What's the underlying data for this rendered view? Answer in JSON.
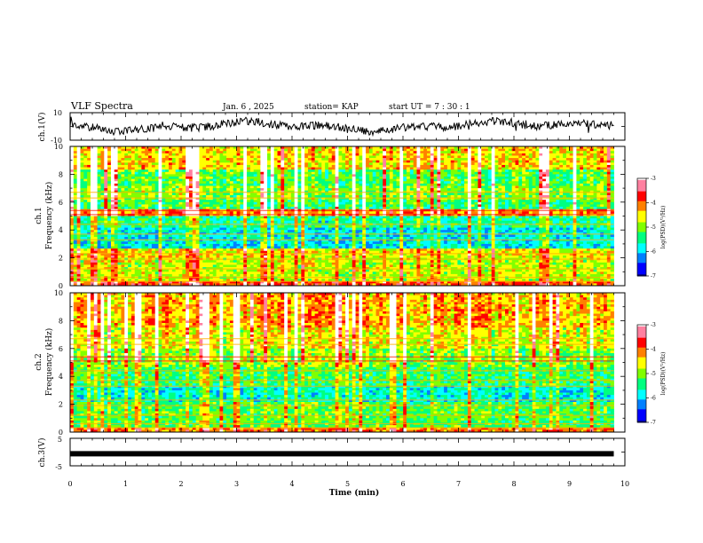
{
  "header": {
    "title": "VLF Spectra",
    "date": "Jan. 6 , 2025",
    "station": "station= KAP",
    "start": "start UT =  7 : 30 : 1"
  },
  "colors": {
    "scale": [
      "#000080",
      "#0000ff",
      "#0080ff",
      "#00ffff",
      "#00ff80",
      "#80ff00",
      "#ffff00",
      "#ff8000",
      "#ff0000",
      "#ff80a0",
      "#ffffff"
    ]
  },
  "chart_data": [
    {
      "id": "ch1-waveform",
      "type": "line",
      "ylabel": "ch.1(V)",
      "ylim": [
        -10,
        10
      ],
      "yticks": [
        "10",
        "-10"
      ],
      "xlim": [
        0,
        10
      ],
      "x_extent": 9.8
    },
    {
      "id": "ch1-spectrogram",
      "type": "heatmap",
      "ylabel": "ch.1\nFrequency (kHz)",
      "ylim": [
        0,
        10
      ],
      "yticks": [
        "0",
        "2",
        "4",
        "6",
        "8",
        "10"
      ],
      "xlim": [
        0,
        10
      ],
      "x_extent": 9.8,
      "colorbar": {
        "label": "log(PSD)(V²/Hz)",
        "range": [
          -7,
          -3
        ],
        "ticks": [
          "-3",
          "-4",
          "-5",
          "-6",
          "-7"
        ]
      }
    },
    {
      "id": "ch2-spectrogram",
      "type": "heatmap",
      "ylabel": "ch.2\nFrequency (kHz)",
      "ylim": [
        0,
        10
      ],
      "yticks": [
        "0",
        "2",
        "4",
        "6",
        "8",
        "10"
      ],
      "xlim": [
        0,
        10
      ],
      "x_extent": 9.8,
      "colorbar": {
        "label": "log(PSD)(V²/Hz)",
        "range": [
          -7,
          -3
        ],
        "ticks": [
          "-3",
          "-4",
          "-5",
          "-6",
          "-7"
        ]
      }
    },
    {
      "id": "ch3-waveform",
      "type": "line",
      "ylabel": "ch.3(V)",
      "ylim": [
        -5,
        5
      ],
      "yticks": [
        "5",
        "-5"
      ],
      "xlim": [
        0,
        10
      ],
      "x_extent": 9.8,
      "approx_value": -0.6,
      "xlabel": "Time (min)",
      "xticks": [
        "0",
        "1",
        "2",
        "3",
        "4",
        "5",
        "6",
        "7",
        "8",
        "9",
        "10"
      ]
    }
  ]
}
